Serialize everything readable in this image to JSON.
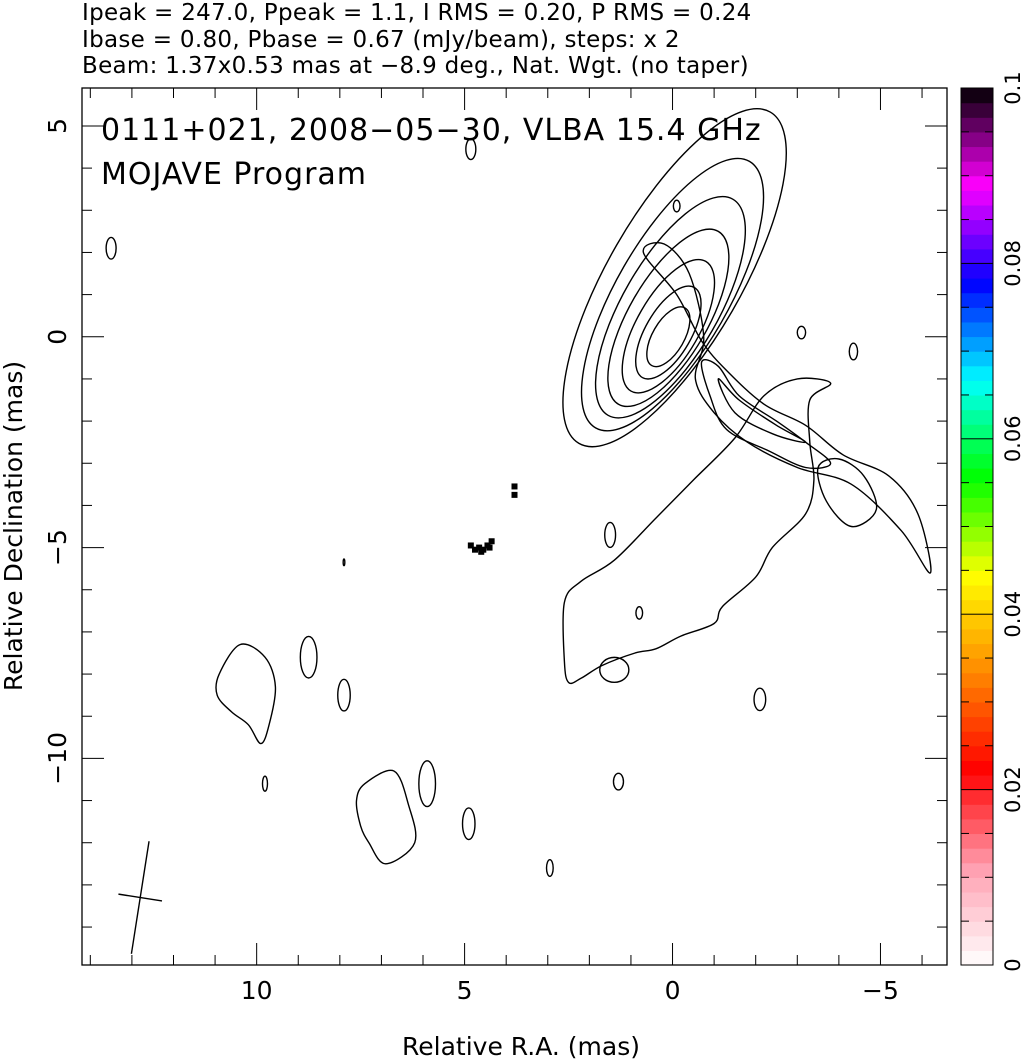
{
  "header": {
    "line1": "Ipeak = 247.0, Ppeak = 1.1, I RMS = 0.20, P RMS = 0.24",
    "line2": "Ibase = 0.80, Pbase = 0.67 (mJy/beam), steps: x 2",
    "line3": "Beam: 1.37x0.53 mas at −8.9 deg., Nat. Wgt. (no taper)"
  },
  "chart_data": {
    "type": "contour",
    "title": "0111+021, 2008−05−30, VLBA 15.4 GHz",
    "subtitle": "MOJAVE Program",
    "xlabel": "Relative R.A. (mas)",
    "ylabel": "Relative Declination (mas)",
    "xlim": [
      14.2,
      -6.6
    ],
    "ylim": [
      -14.9,
      5.9
    ],
    "x_ticks": [
      {
        "value": 10,
        "label": "10"
      },
      {
        "value": 5,
        "label": "5"
      },
      {
        "value": 0,
        "label": "0"
      },
      {
        "value": -5,
        "label": "−5"
      }
    ],
    "y_ticks": [
      {
        "value": 5,
        "label": "5"
      },
      {
        "value": 0,
        "label": "0"
      },
      {
        "value": -5,
        "label": "−5"
      },
      {
        "value": -10,
        "label": "−10"
      }
    ],
    "colorbar": {
      "range": [
        0,
        0.1
      ],
      "ticks": [
        {
          "value": 0,
          "label": "0"
        },
        {
          "value": 0.02,
          "label": "0.02"
        },
        {
          "value": 0.04,
          "label": "0.04"
        },
        {
          "value": 0.06,
          "label": "0.06"
        },
        {
          "value": 0.08,
          "label": "0.08"
        },
        {
          "value": 0.1,
          "label": "0.1"
        }
      ],
      "stops": [
        "#ffffff",
        "#ff9fb0",
        "#ff0000",
        "#ff8800",
        "#ffff00",
        "#00ff00",
        "#00ffff",
        "#0000ff",
        "#ff00ff",
        "#000000"
      ]
    },
    "beam": {
      "major_mas": 1.37,
      "minor_mas": 0.53,
      "pa_deg": -8.9
    },
    "contour_levels_mjy": [
      0.8,
      1.6,
      3.2,
      6.4,
      12.8,
      25.6,
      51.2,
      102.4,
      204.8
    ],
    "core": {
      "x": 0.1,
      "y": 0.0
    },
    "main_jet_contours": [
      {
        "cx": -0.05,
        "cy": 1.4,
        "len": 4.6,
        "wid": 1.6,
        "pa": -30
      },
      {
        "cx": 0.0,
        "cy": 1.0,
        "len": 3.7,
        "wid": 1.35,
        "pa": -30
      },
      {
        "cx": 0.05,
        "cy": 0.7,
        "len": 3.0,
        "wid": 1.15,
        "pa": -30
      },
      {
        "cx": 0.1,
        "cy": 0.45,
        "len": 2.4,
        "wid": 0.95,
        "pa": -30
      },
      {
        "cx": 0.1,
        "cy": 0.25,
        "len": 1.8,
        "wid": 0.75,
        "pa": -30
      },
      {
        "cx": 0.1,
        "cy": 0.1,
        "len": 1.25,
        "wid": 0.55,
        "pa": -30
      },
      {
        "cx": 0.1,
        "cy": 0.0,
        "len": 0.8,
        "wid": 0.38,
        "pa": -30
      }
    ],
    "jet_outline": [
      [
        0.7,
        2.0
      ],
      [
        0.2,
        2.2
      ],
      [
        -0.4,
        1.5
      ],
      [
        -0.75,
        0.0
      ],
      [
        -0.55,
        -1.0
      ],
      [
        -1.0,
        -1.8
      ],
      [
        -1.8,
        -2.5
      ],
      [
        -3.0,
        -3.1
      ],
      [
        -4.3,
        -3.5
      ],
      [
        -5.5,
        -4.6
      ],
      [
        -6.2,
        -5.6
      ],
      [
        -5.9,
        -4.2
      ],
      [
        -5.2,
        -3.3
      ],
      [
        -4.1,
        -2.8
      ],
      [
        -3.2,
        -2.1
      ],
      [
        -2.2,
        -1.6
      ],
      [
        -1.3,
        -0.8
      ],
      [
        -0.7,
        -0.1
      ],
      [
        -0.1,
        1.0
      ]
    ],
    "jet_inner": [
      [
        [
          -3.8,
          -3.0
        ],
        [
          -3.2,
          -2.5
        ],
        [
          -2.5,
          -2.0
        ],
        [
          -1.6,
          -1.4
        ],
        [
          -1.1,
          -0.7
        ],
        [
          -0.7,
          -0.6
        ],
        [
          -0.9,
          -1.4
        ],
        [
          -1.3,
          -2.2
        ],
        [
          -2.3,
          -2.7
        ],
        [
          -3.2,
          -3.1
        ]
      ],
      [
        [
          -3.2,
          -2.5
        ],
        [
          -2.5,
          -2.1
        ],
        [
          -1.6,
          -1.5
        ],
        [
          -1.1,
          -1.0
        ],
        [
          -1.5,
          -1.8
        ],
        [
          -2.4,
          -2.3
        ]
      ],
      [
        [
          -4.9,
          -4.1
        ],
        [
          -4.6,
          -3.3
        ],
        [
          -4.0,
          -2.9
        ],
        [
          -3.5,
          -3.1
        ],
        [
          -3.7,
          -3.9
        ],
        [
          -4.3,
          -4.5
        ]
      ]
    ],
    "southwest_lobe": [
      [
        -3.8,
        -1.1
      ],
      [
        -3.3,
        -1.5
      ],
      [
        -3.3,
        -2.5
      ],
      [
        -3.4,
        -3.4
      ],
      [
        -3.2,
        -4.2
      ],
      [
        -2.4,
        -5.0
      ],
      [
        -2.0,
        -5.7
      ],
      [
        -1.2,
        -6.4
      ],
      [
        -1.0,
        -6.8
      ],
      [
        -0.2,
        -7.1
      ],
      [
        0.4,
        -7.4
      ],
      [
        0.9,
        -7.5
      ],
      [
        1.7,
        -7.8
      ],
      [
        2.2,
        -8.1
      ],
      [
        2.5,
        -8.2
      ],
      [
        2.6,
        -7.7
      ],
      [
        2.6,
        -6.3
      ],
      [
        2.2,
        -5.8
      ],
      [
        1.4,
        -5.3
      ],
      [
        0.4,
        -4.3
      ],
      [
        -0.5,
        -3.4
      ],
      [
        -1.5,
        -2.4
      ],
      [
        -2.2,
        -1.4
      ],
      [
        -3.0,
        -1.0
      ]
    ],
    "islands": [
      {
        "x": 4.85,
        "y": 4.45,
        "rx": 0.12,
        "ry": 0.25,
        "pa": 0
      },
      {
        "x": -0.1,
        "y": 3.1,
        "rx": 0.08,
        "ry": 0.14,
        "pa": 0
      },
      {
        "x": 13.5,
        "y": 2.1,
        "rx": 0.12,
        "ry": 0.26,
        "pa": 0
      },
      {
        "x": -3.1,
        "y": 0.1,
        "rx": 0.1,
        "ry": 0.15,
        "pa": 0
      },
      {
        "x": -4.35,
        "y": -0.35,
        "rx": 0.1,
        "ry": 0.2,
        "pa": 0
      },
      {
        "x": 1.5,
        "y": -4.7,
        "rx": 0.13,
        "ry": 0.3,
        "pa": 0
      },
      {
        "x": 0.8,
        "y": -6.55,
        "rx": 0.08,
        "ry": 0.15,
        "pa": 0
      },
      {
        "x": 1.4,
        "y": -7.9,
        "rx": 0.35,
        "ry": 0.3,
        "pa": 0
      },
      {
        "x": -2.1,
        "y": -8.6,
        "rx": 0.14,
        "ry": 0.27,
        "pa": 0
      },
      {
        "x": 8.75,
        "y": -7.6,
        "rx": 0.2,
        "ry": 0.5,
        "pa": 0
      },
      {
        "x": 7.9,
        "y": -8.5,
        "rx": 0.15,
        "ry": 0.38,
        "pa": 0
      },
      {
        "x": 9.8,
        "y": -10.6,
        "rx": 0.06,
        "ry": 0.18,
        "pa": 0
      },
      {
        "x": 5.9,
        "y": -10.6,
        "rx": 0.2,
        "ry": 0.55,
        "pa": 0
      },
      {
        "x": 4.9,
        "y": -11.55,
        "rx": 0.15,
        "ry": 0.38,
        "pa": 0
      },
      {
        "x": 1.3,
        "y": -10.55,
        "rx": 0.12,
        "ry": 0.2,
        "pa": 0
      },
      {
        "x": 2.95,
        "y": -12.6,
        "rx": 0.08,
        "ry": 0.2,
        "pa": 0
      },
      {
        "x": 7.9,
        "y": -5.35,
        "rx": 0.02,
        "ry": 0.08,
        "pa": 0
      }
    ],
    "blob_contours": [
      [
        [
          10.9,
          -8.0
        ],
        [
          10.4,
          -7.3
        ],
        [
          9.8,
          -7.6
        ],
        [
          9.55,
          -8.3
        ],
        [
          9.7,
          -9.2
        ],
        [
          9.9,
          -9.65
        ],
        [
          10.2,
          -9.2
        ],
        [
          10.6,
          -8.9
        ],
        [
          10.95,
          -8.5
        ]
      ],
      [
        [
          7.4,
          -10.6
        ],
        [
          6.7,
          -10.3
        ],
        [
          6.35,
          -11.1
        ],
        [
          6.2,
          -12.0
        ],
        [
          6.9,
          -12.5
        ],
        [
          7.3,
          -12.0
        ],
        [
          7.5,
          -11.6
        ],
        [
          7.6,
          -11.0
        ]
      ]
    ],
    "polarization_pixels": [
      {
        "x": 4.85,
        "y": -4.95
      },
      {
        "x": 4.75,
        "y": -5.05
      },
      {
        "x": 4.65,
        "y": -5.0
      },
      {
        "x": 4.55,
        "y": -5.05
      },
      {
        "x": 4.45,
        "y": -4.95
      },
      {
        "x": 4.35,
        "y": -4.85
      },
      {
        "x": 4.4,
        "y": -5.0
      },
      {
        "x": 4.6,
        "y": -5.1
      },
      {
        "x": 3.8,
        "y": -3.55
      },
      {
        "x": 3.8,
        "y": -3.75
      }
    ]
  }
}
